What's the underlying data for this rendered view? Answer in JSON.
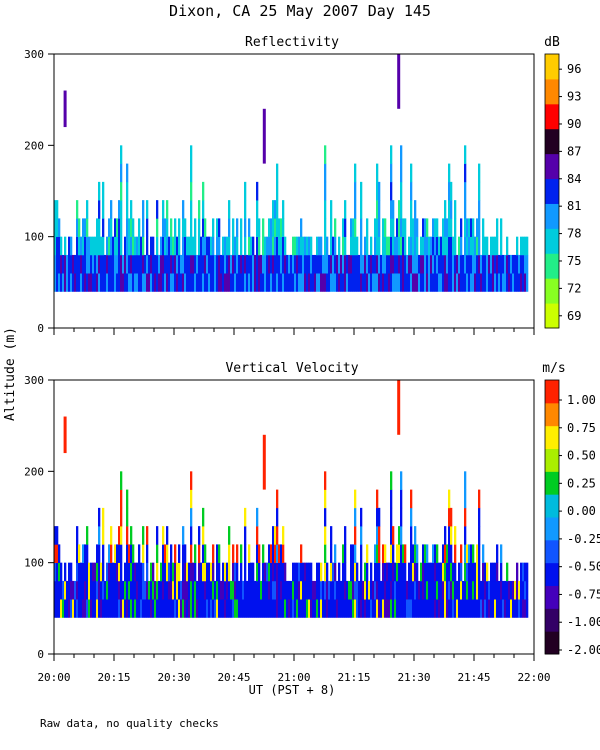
{
  "main_title": "Dixon, CA 25 May 2007  Day 145",
  "footer_note": "Raw data, no quality checks",
  "shared_ylabel": "Altitude (m)",
  "shared_xlabel": "UT  (PST + 8)",
  "colors": {
    "reflectivity_scale": [
      "#ccff00",
      "#88ff22",
      "#22ee88",
      "#00ccdd",
      "#1199ff",
      "#0022ee",
      "#5500aa",
      "#220022",
      "#ff0000",
      "#ff8800",
      "#ffcc00"
    ],
    "velocity_scale": [
      "#220022",
      "#330066",
      "#4400bb",
      "#0011ee",
      "#1155ff",
      "#1199ff",
      "#00bbdd",
      "#00cc22",
      "#aaee00",
      "#ffee00",
      "#ff8800",
      "#ff2200"
    ]
  },
  "chart_data": [
    {
      "type": "heatmap",
      "panel": "reflectivity",
      "title": "Reflectivity",
      "ylabel": "Altitude (m)",
      "xlabel": "UT  (PST + 8)",
      "x_ticks": [
        "20:00",
        "20:15",
        "20:30",
        "20:45",
        "21:00",
        "21:15",
        "21:30",
        "21:45",
        "22:00"
      ],
      "xlim_hours": [
        20.0,
        22.0
      ],
      "ylim": [
        0,
        300
      ],
      "y_ticks": [
        "0",
        "100",
        "200",
        "300"
      ],
      "y_tick_values": [
        0,
        100,
        200,
        300
      ],
      "colorbar": {
        "unit": "dB",
        "values": [
          69,
          72,
          75,
          78,
          81,
          84,
          87,
          90,
          93,
          96
        ],
        "labels": [
          "69",
          "72",
          "75",
          "78",
          "81",
          "84",
          "87",
          "90",
          "93",
          "96"
        ]
      },
      "echo_base_m": 40,
      "typical_echo_top_m": 120,
      "max_echo_top_m": 300
    },
    {
      "type": "heatmap",
      "panel": "vertical_velocity",
      "title": "Vertical Velocity",
      "ylabel": "Altitude (m)",
      "xlabel": "UT  (PST + 8)",
      "x_ticks": [
        "20:00",
        "20:15",
        "20:30",
        "20:45",
        "21:00",
        "21:15",
        "21:30",
        "21:45",
        "22:00"
      ],
      "xlim_hours": [
        20.0,
        22.0
      ],
      "ylim": [
        0,
        300
      ],
      "y_ticks": [
        "0",
        "100",
        "200",
        "300"
      ],
      "y_tick_values": [
        0,
        100,
        200,
        300
      ],
      "colorbar": {
        "unit": "m/s",
        "values": [
          -2.0,
          -1.0,
          -0.75,
          -0.5,
          -0.25,
          0.0,
          0.25,
          0.5,
          0.75,
          1.0
        ],
        "labels": [
          "-2.00",
          "-1.00",
          "-0.75",
          "-0.50",
          "-0.25",
          "0.00",
          "0.25",
          "0.50",
          "0.75",
          "1.00"
        ]
      },
      "echo_base_m": 40,
      "typical_echo_top_m": 120,
      "max_echo_top_m": 300
    }
  ]
}
